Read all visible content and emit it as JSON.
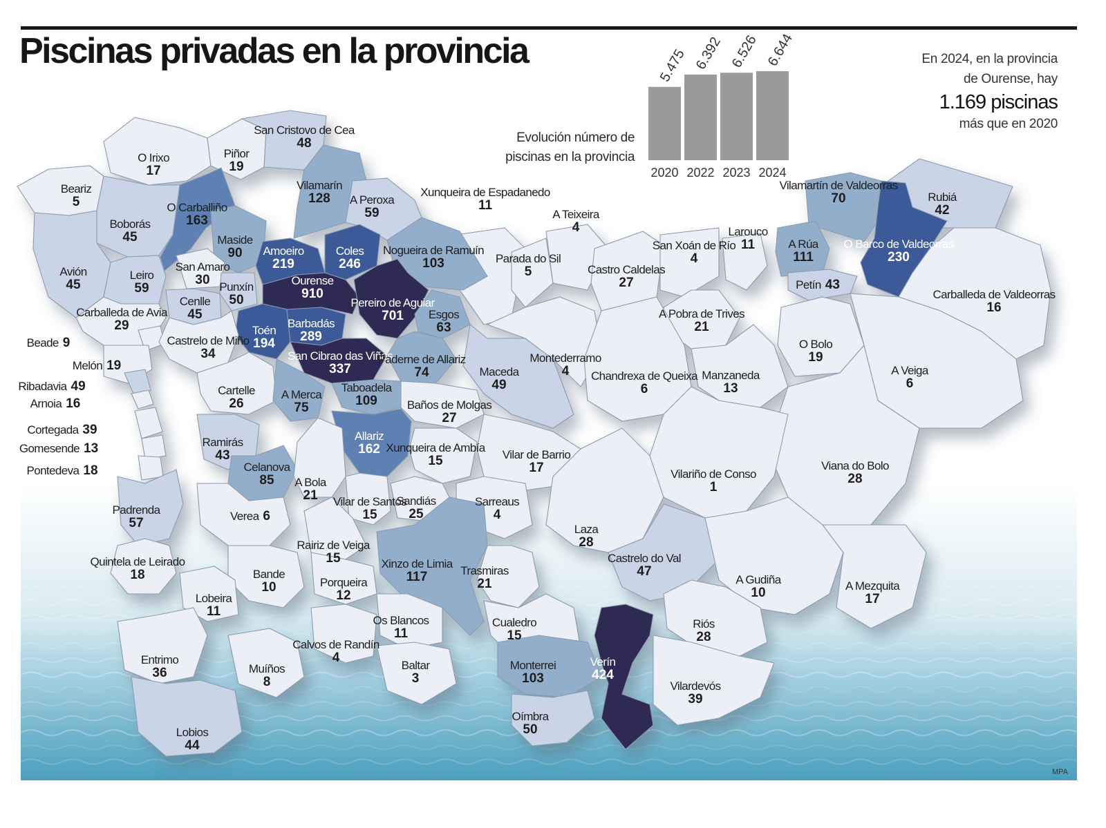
{
  "title": "Piscinas privadas en la provincia",
  "summary": {
    "line1": "En 2024, en la provincia",
    "line2": "de Ourense, hay",
    "highlight": "1.169 piscinas",
    "line3": "más que en 2020"
  },
  "chart_caption": {
    "line1": "Evolución número de",
    "line2": "piscinas en la provincia"
  },
  "chart_data": {
    "type": "bar",
    "categories": [
      "2020",
      "2022",
      "2023",
      "2024"
    ],
    "values": [
      5475,
      6392,
      6526,
      6644
    ],
    "value_labels": [
      "5.475",
      "6.392",
      "6.526",
      "6.644"
    ],
    "bar_color": "#9a9a9a"
  },
  "colors": {
    "level_1": "#eceff6",
    "level_2": "#c9d5e6",
    "level_3": "#93aecb",
    "level_4": "#5f80b2",
    "level_5": "#3a5a97",
    "level_6": "#2e2a52",
    "water": "#5aa9c4",
    "border": "#8c9bb0"
  },
  "municipalities": [
    {
      "id": "o-irixo",
      "name": "O Irixo",
      "value": "17"
    },
    {
      "id": "pinor",
      "name": "Piñor",
      "value": "19"
    },
    {
      "id": "san-cristovo-de-cea",
      "name": "San Cristovo de Cea",
      "value": "48"
    },
    {
      "id": "beariz",
      "name": "Beariz",
      "value": "5"
    },
    {
      "id": "o-carballino",
      "name": "O Carballiño",
      "value": "163"
    },
    {
      "id": "vilamarin",
      "name": "Vilamarín",
      "value": "128"
    },
    {
      "id": "a-peroxa",
      "name": "A Peroxa",
      "value": "59"
    },
    {
      "id": "xunqueira-de-espadanedo",
      "name": "Xunqueira de Espadanedo",
      "value": "11"
    },
    {
      "id": "a-teixeira",
      "name": "A Teixeira",
      "value": "4"
    },
    {
      "id": "larouco",
      "name": "Larouco",
      "value": "11"
    },
    {
      "id": "vilamartin-de-valdeorras",
      "name": "Vilamartín de Valdeorras",
      "value": "70"
    },
    {
      "id": "rubia",
      "name": "Rubiá",
      "value": "42"
    },
    {
      "id": "boboras",
      "name": "Boborás",
      "value": "45"
    },
    {
      "id": "maside",
      "name": "Maside",
      "value": "90"
    },
    {
      "id": "amoeiro",
      "name": "Amoeiro",
      "value": "219"
    },
    {
      "id": "coles",
      "name": "Coles",
      "value": "246"
    },
    {
      "id": "nogueira-de-ramuin",
      "name": "Nogueira de Ramuín",
      "value": "103"
    },
    {
      "id": "parada-do-sil",
      "name": "Parada do Sil",
      "value": "5"
    },
    {
      "id": "castro-caldelas",
      "name": "Castro Caldelas",
      "value": "27"
    },
    {
      "id": "san-xoan-de-rio",
      "name": "San Xoán de Río",
      "value": "4"
    },
    {
      "id": "a-rua",
      "name": "A Rúa",
      "value": "111"
    },
    {
      "id": "o-barco-de-valdeorras",
      "name": "O Barco de Valdeorras",
      "value": "230"
    },
    {
      "id": "avion",
      "name": "Avión",
      "value": "45"
    },
    {
      "id": "leiro",
      "name": "Leiro",
      "value": "59"
    },
    {
      "id": "san-amaro",
      "name": "San Amaro",
      "value": "30"
    },
    {
      "id": "punxin",
      "name": "Punxín",
      "value": "50"
    },
    {
      "id": "ourense",
      "name": "Ourense",
      "value": "910"
    },
    {
      "id": "pereiro-de-aguiar",
      "name": "Pereiro de Aguiar",
      "value": "701"
    },
    {
      "id": "esgos",
      "name": "Esgos",
      "value": "63"
    },
    {
      "id": "petin",
      "name": "Petín",
      "value": "43"
    },
    {
      "id": "carballeda-de-valdeorras",
      "name": "Carballeda de Valdeorras",
      "value": "16"
    },
    {
      "id": "cenlle",
      "name": "Cenlle",
      "value": "45"
    },
    {
      "id": "carballeda-de-avia",
      "name": "Carballeda de Avia",
      "value": "29"
    },
    {
      "id": "toen",
      "name": "Toén",
      "value": "194"
    },
    {
      "id": "barbadas",
      "name": "Barbadás",
      "value": "289"
    },
    {
      "id": "a-pobra-de-trives",
      "name": "A Pobra de Trives",
      "value": "21"
    },
    {
      "id": "beade",
      "name": "Beade",
      "value": "9"
    },
    {
      "id": "castrelo-de-mino",
      "name": "Castrelo de Miño",
      "value": "34"
    },
    {
      "id": "o-bolo",
      "name": "O Bolo",
      "value": "19"
    },
    {
      "id": "san-cibrao-das-vinas",
      "name": "San Cibrao das Viñas",
      "value": "337"
    },
    {
      "id": "paderne-de-allariz",
      "name": "Paderne de Allariz",
      "value": "74"
    },
    {
      "id": "maceda",
      "name": "Maceda",
      "value": "49"
    },
    {
      "id": "montederramo",
      "name": "Montederramo",
      "value": "4"
    },
    {
      "id": "melon",
      "name": "Melón",
      "value": "19"
    },
    {
      "id": "chandrexa-de-queixa",
      "name": "Chandrexa de Queixa",
      "value": "6"
    },
    {
      "id": "manzaneda",
      "name": "Manzaneda",
      "value": "13"
    },
    {
      "id": "a-veiga",
      "name": "A Veiga",
      "value": "6"
    },
    {
      "id": "ribadavia",
      "name": "Ribadavia",
      "value": "49"
    },
    {
      "id": "cartelle",
      "name": "Cartelle",
      "value": "26"
    },
    {
      "id": "a-merca",
      "name": "A Merca",
      "value": "75"
    },
    {
      "id": "taboadela",
      "name": "Taboadela",
      "value": "109"
    },
    {
      "id": "arnoia",
      "name": "Arnoia",
      "value": "16"
    },
    {
      "id": "banos-de-molgas",
      "name": "Baños de Molgas",
      "value": "27"
    },
    {
      "id": "cortegada",
      "name": "Cortegada",
      "value": "39"
    },
    {
      "id": "allariz",
      "name": "Allariz",
      "value": "162"
    },
    {
      "id": "gomesende",
      "name": "Gomesende",
      "value": "13"
    },
    {
      "id": "ramiras",
      "name": "Ramirás",
      "value": "43"
    },
    {
      "id": "xunqueira-de-ambia",
      "name": "Xunqueira de Ambía",
      "value": "15"
    },
    {
      "id": "vilar-de-barrio",
      "name": "Vilar de Barrio",
      "value": "17"
    },
    {
      "id": "celanova",
      "name": "Celanova",
      "value": "85"
    },
    {
      "id": "viana-do-bolo",
      "name": "Viana do Bolo",
      "value": "28"
    },
    {
      "id": "pontedeva",
      "name": "Pontedeva",
      "value": "18"
    },
    {
      "id": "vilarino-de-conso",
      "name": "Vilariño de Conso",
      "value": "1"
    },
    {
      "id": "a-bola",
      "name": "A Bola",
      "value": "21"
    },
    {
      "id": "vilar-de-santos",
      "name": "Vilar de Santos",
      "value": "15"
    },
    {
      "id": "sandias",
      "name": "Sandiás",
      "value": "25"
    },
    {
      "id": "padrenda",
      "name": "Padrenda",
      "value": "57"
    },
    {
      "id": "sarreaus",
      "name": "Sarreaus",
      "value": "4"
    },
    {
      "id": "verea",
      "name": "Verea",
      "value": "6"
    },
    {
      "id": "laza",
      "name": "Laza",
      "value": "28"
    },
    {
      "id": "rairiz-de-veiga",
      "name": "Rairiz de Veiga",
      "value": "15"
    },
    {
      "id": "xinzo-de-limia",
      "name": "Xinzo de Limia",
      "value": "117"
    },
    {
      "id": "quintela-de-leirado",
      "name": "Quintela de Leirado",
      "value": "18"
    },
    {
      "id": "castrelo-do-val",
      "name": "Castrelo do Val",
      "value": "47"
    },
    {
      "id": "trasmiras",
      "name": "Trasmiras",
      "value": "21"
    },
    {
      "id": "bande",
      "name": "Bande",
      "value": "10"
    },
    {
      "id": "a-gudina",
      "name": "A Gudiña",
      "value": "10"
    },
    {
      "id": "a-mezquita",
      "name": "A Mezquita",
      "value": "17"
    },
    {
      "id": "porqueira",
      "name": "Porqueira",
      "value": "12"
    },
    {
      "id": "lobeira",
      "name": "Lobeira",
      "value": "11"
    },
    {
      "id": "cualedro",
      "name": "Cualedro",
      "value": "15"
    },
    {
      "id": "os-blancos",
      "name": "Os Blancos",
      "value": "11"
    },
    {
      "id": "rios",
      "name": "Riós",
      "value": "28"
    },
    {
      "id": "calvos-de-randin",
      "name": "Calvos de Randín",
      "value": "4"
    },
    {
      "id": "entrimo",
      "name": "Entrimo",
      "value": "36"
    },
    {
      "id": "baltar",
      "name": "Baltar",
      "value": "3"
    },
    {
      "id": "monterrei",
      "name": "Monterrei",
      "value": "103"
    },
    {
      "id": "verin",
      "name": "Verín",
      "value": "424"
    },
    {
      "id": "muinos",
      "name": "Muíños",
      "value": "8"
    },
    {
      "id": "vilardevos",
      "name": "Vilardevós",
      "value": "39"
    },
    {
      "id": "oimbra",
      "name": "Oímbra",
      "value": "50"
    },
    {
      "id": "lobios",
      "name": "Lobios",
      "value": "44"
    }
  ],
  "credit": "MPA"
}
